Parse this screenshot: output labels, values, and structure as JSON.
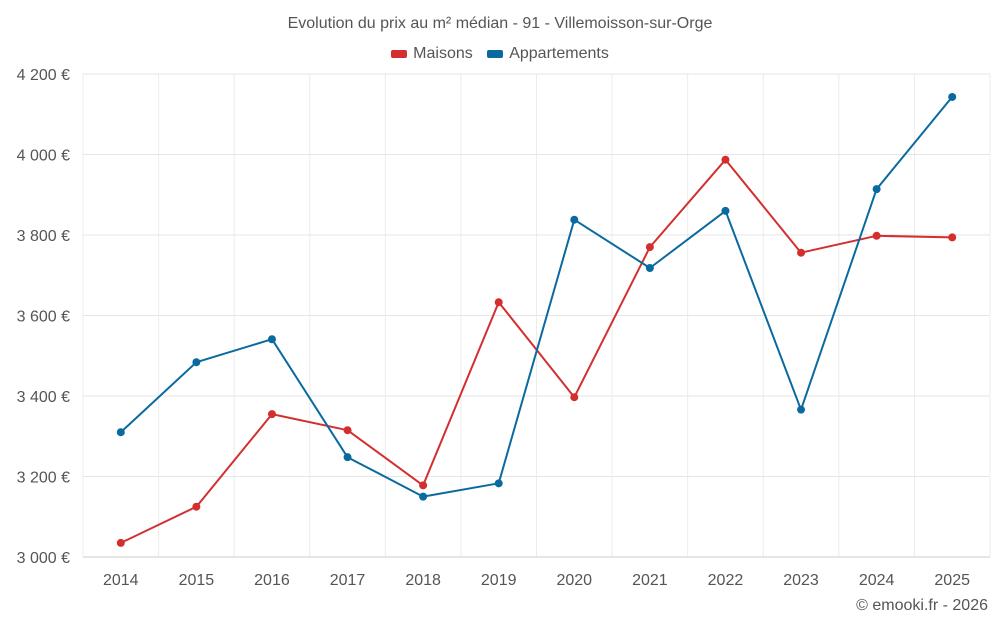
{
  "chart_data": {
    "type": "line",
    "title": "Evolution du prix au m² médian - 91 - Villemoisson-sur-Orge",
    "categories": [
      "2014",
      "2015",
      "2016",
      "2017",
      "2018",
      "2019",
      "2020",
      "2021",
      "2022",
      "2023",
      "2024",
      "2025"
    ],
    "series": [
      {
        "name": "Maisons",
        "color": "#d32f2f",
        "values": [
          3035,
          3125,
          3355,
          3315,
          3178,
          3633,
          3397,
          3770,
          3987,
          3756,
          3798,
          3794
        ]
      },
      {
        "name": "Appartements",
        "color": "#0a6aa0",
        "values": [
          3310,
          3484,
          3541,
          3248,
          3150,
          3183,
          3838,
          3718,
          3860,
          3366,
          3914,
          4143
        ]
      }
    ],
    "y_ticks": [
      3000,
      3200,
      3400,
      3600,
      3800,
      4000,
      4200
    ],
    "y_tick_labels": [
      "3 000 €",
      "3 200 €",
      "3 400 €",
      "3 600 €",
      "3 800 €",
      "4 000 €",
      "4 200 €"
    ],
    "ylim": [
      3000,
      4200
    ],
    "grid": true,
    "legend_position": "top-center"
  },
  "credit": "© emooki.fr - 2026"
}
